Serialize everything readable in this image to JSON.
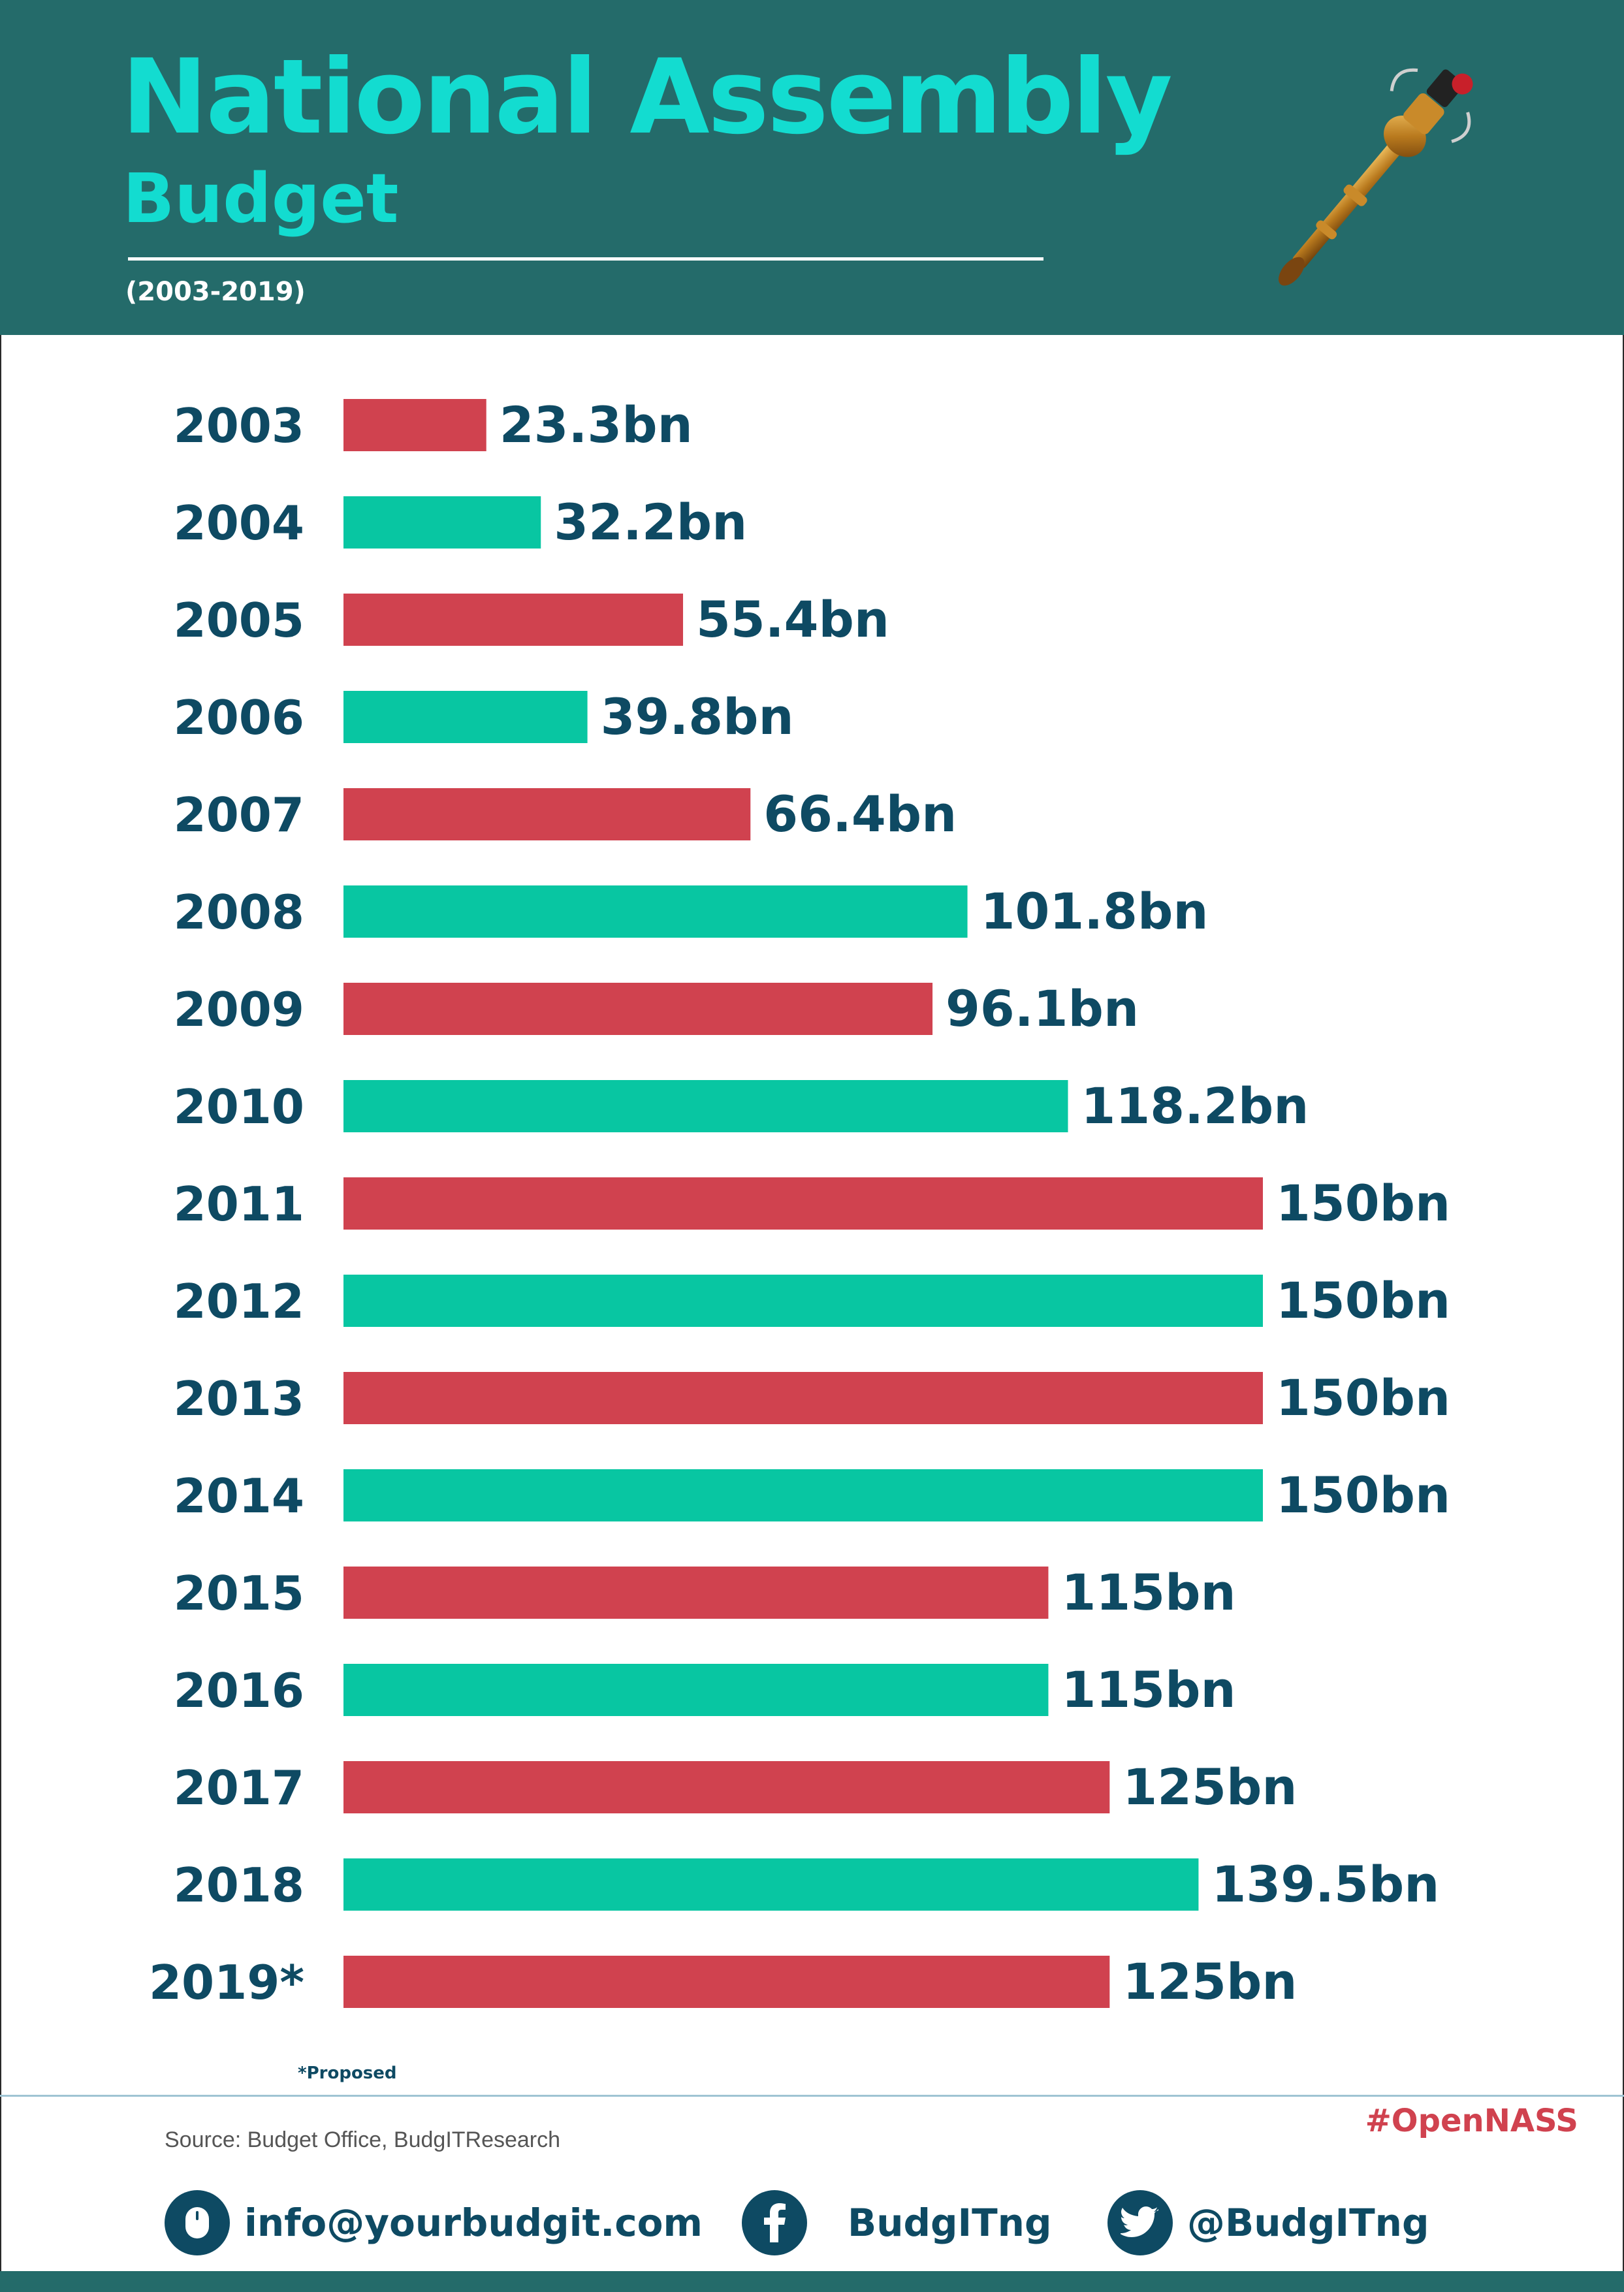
{
  "header": {
    "title": "National Assembly",
    "subtitle": "Budget",
    "range": "(2003-2019)"
  },
  "colors": {
    "header_bg": "#246b6a",
    "title": "#13dcd0",
    "bar_red": "#d0424f",
    "bar_green": "#08c6a2",
    "text_dark": "#0e4a63"
  },
  "chart_data": {
    "type": "bar",
    "orientation": "horizontal",
    "title": "National Assembly Budget",
    "categories": [
      "2003",
      "2004",
      "2005",
      "2006",
      "2007",
      "2008",
      "2009",
      "2010",
      "2011",
      "2012",
      "2013",
      "2014",
      "2015",
      "2016",
      "2017",
      "2018",
      "2019*"
    ],
    "values": [
      23.3,
      32.2,
      55.4,
      39.8,
      66.4,
      101.8,
      96.1,
      118.2,
      150,
      150,
      150,
      150,
      115,
      115,
      125,
      139.5,
      125
    ],
    "data_labels": [
      "23.3bn",
      "32.2bn",
      "55.4bn",
      "39.8bn",
      "66.4bn",
      "101.8bn",
      "96.1bn",
      "118.2bn",
      "150bn",
      "150bn",
      "150bn",
      "150bn",
      "115bn",
      "115bn",
      "125bn",
      "139.5bn",
      "125bn"
    ],
    "bar_colors": [
      "#d0424f",
      "#08c6a2",
      "#d0424f",
      "#08c6a2",
      "#d0424f",
      "#08c6a2",
      "#d0424f",
      "#08c6a2",
      "#d0424f",
      "#08c6a2",
      "#d0424f",
      "#08c6a2",
      "#d0424f",
      "#08c6a2",
      "#d0424f",
      "#08c6a2",
      "#d0424f"
    ],
    "xlim": [
      0,
      150
    ],
    "grid": false,
    "legend": "none",
    "xlabel": "",
    "ylabel": ""
  },
  "footnote": "*Proposed",
  "hashtag": "#OpenNASS",
  "source": "Source: Budget Office, BudgITResearch",
  "contacts": [
    {
      "icon": "mouse-icon",
      "label": "info@yourbudgit.com"
    },
    {
      "icon": "facebook-icon",
      "label": "BudgITng"
    },
    {
      "icon": "twitter-icon",
      "label": "@BudgITng"
    }
  ]
}
